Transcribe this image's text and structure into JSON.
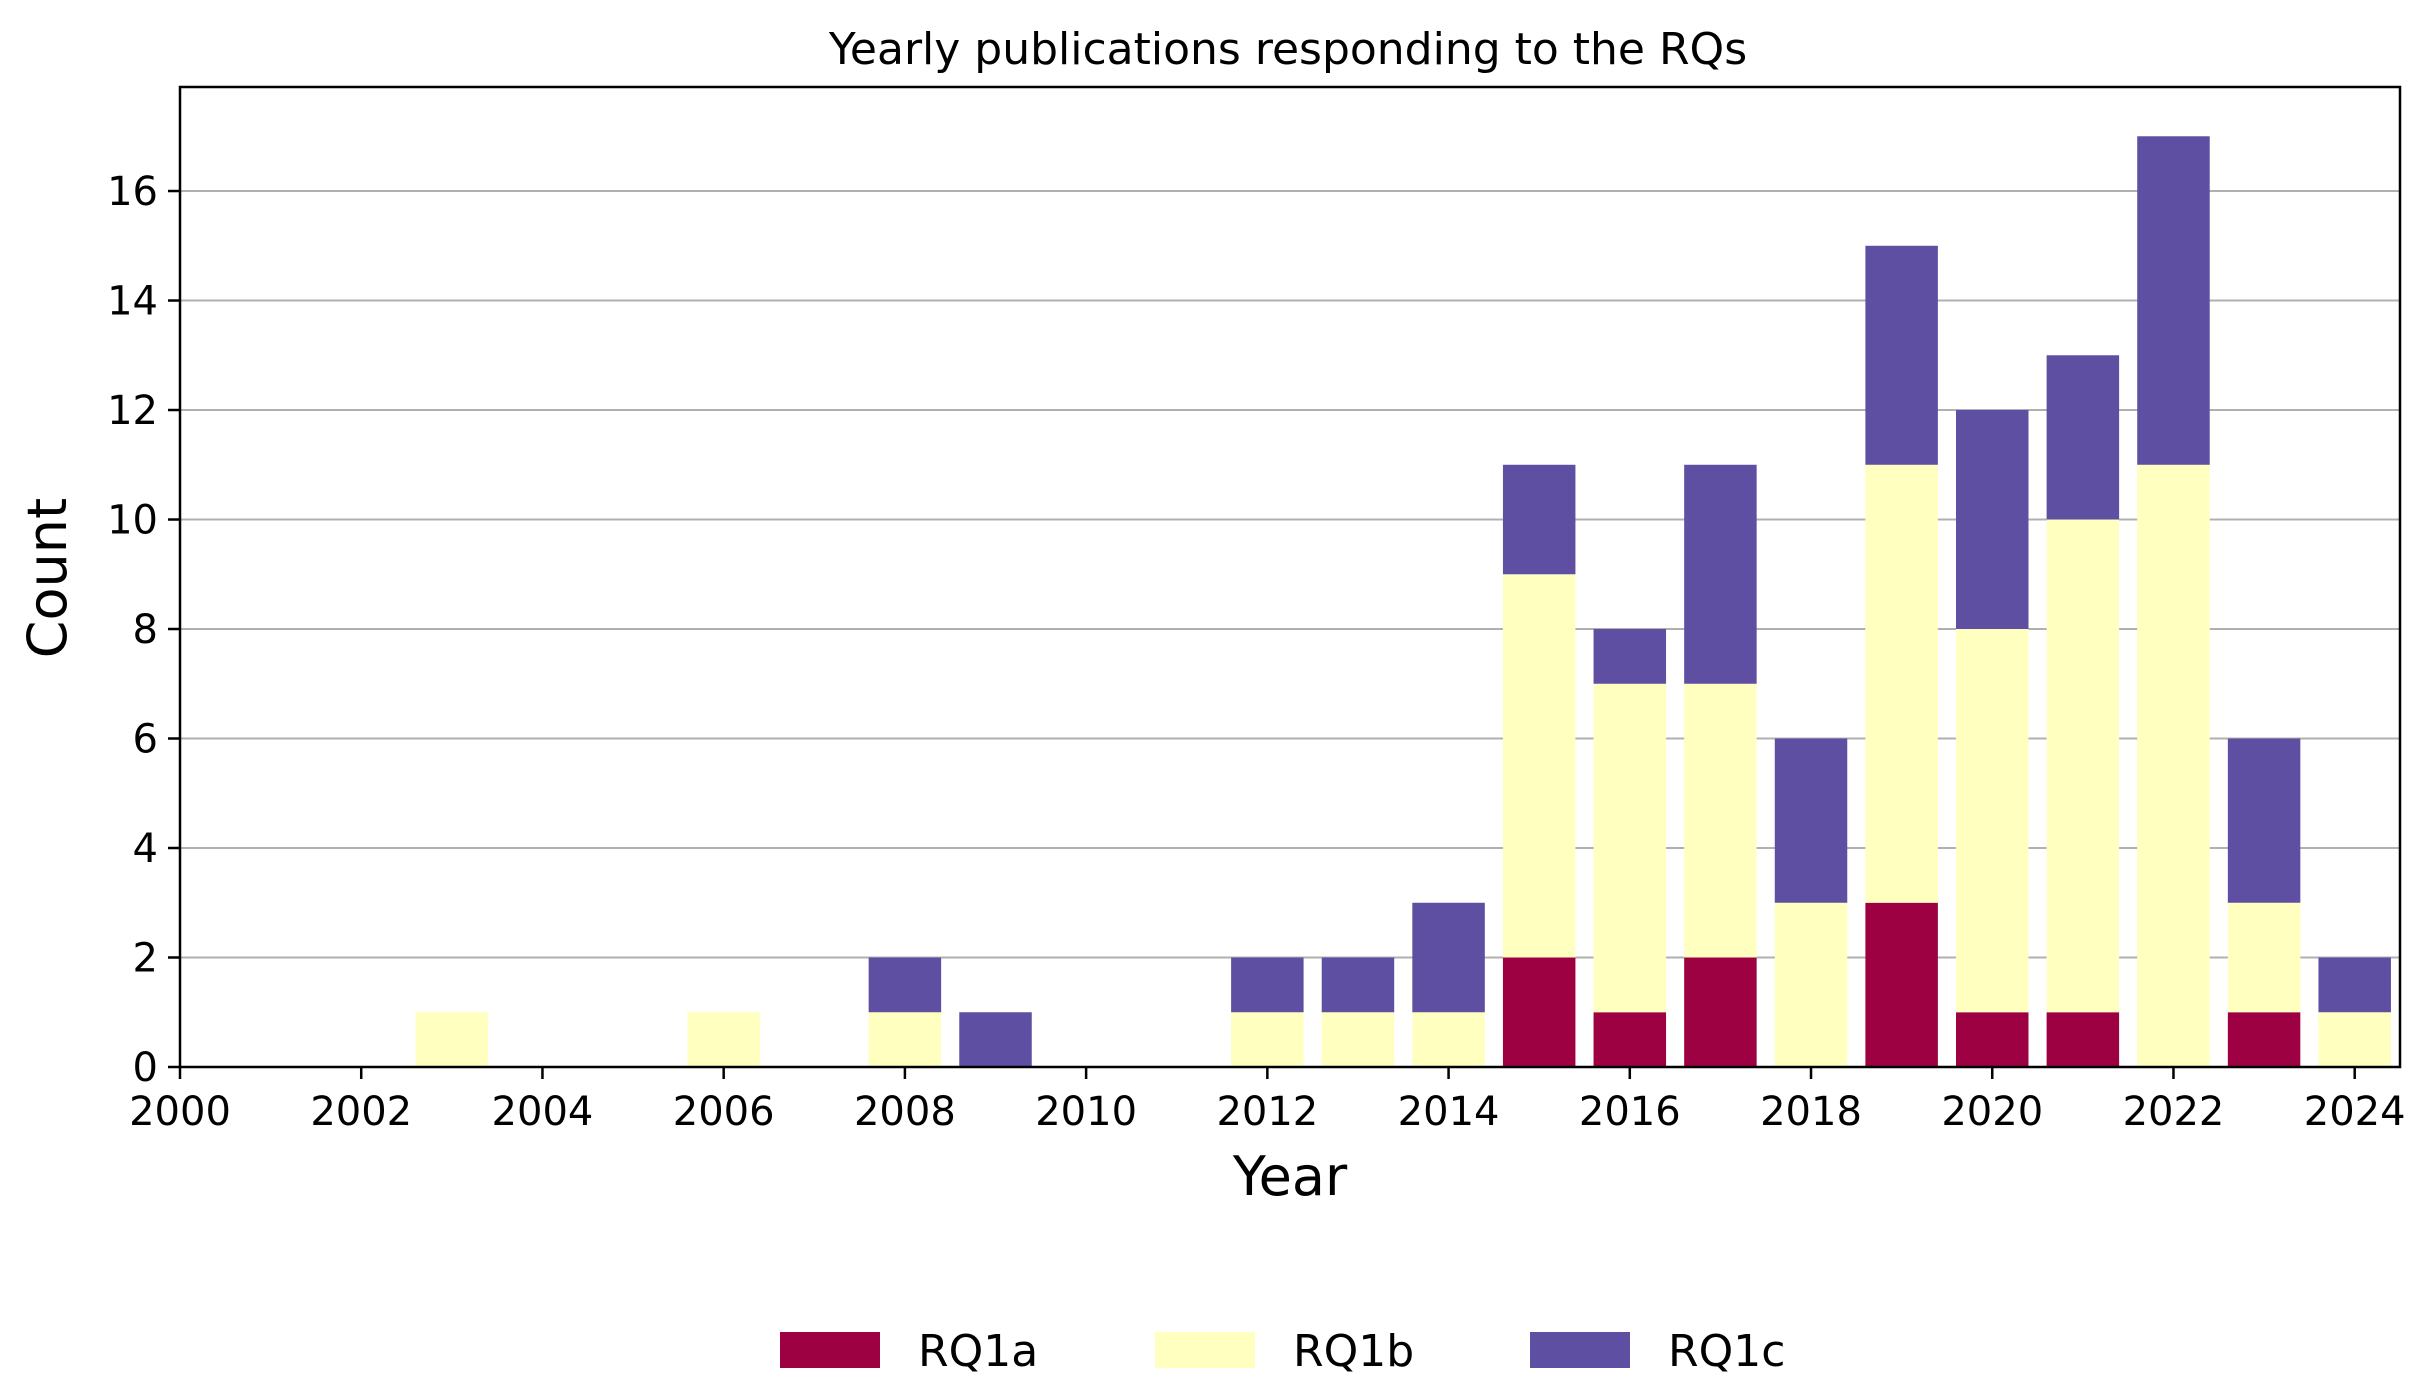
{
  "chart_data": {
    "type": "bar",
    "stacked": true,
    "title": "Yearly publications responding to the RQs",
    "xlabel": "Year",
    "ylabel": "Count",
    "xlim": [
      2000,
      2024.5
    ],
    "ylim": [
      0,
      17.9
    ],
    "grid": "y",
    "legend_position": "bottom-center",
    "x_ticks": [
      2000,
      2002,
      2004,
      2006,
      2008,
      2010,
      2012,
      2014,
      2016,
      2018,
      2020,
      2022,
      2024
    ],
    "y_ticks": [
      0,
      2,
      4,
      6,
      8,
      10,
      12,
      14,
      16
    ],
    "categories": [
      2003,
      2006,
      2008,
      2009,
      2012,
      2013,
      2014,
      2015,
      2016,
      2017,
      2018,
      2019,
      2020,
      2021,
      2022,
      2023,
      2024
    ],
    "series": [
      {
        "name": "RQ1a",
        "color": "#9e0142",
        "values": [
          0,
          0,
          0,
          0,
          0,
          0,
          0,
          2,
          1,
          2,
          0,
          3,
          1,
          1,
          0,
          1,
          0
        ]
      },
      {
        "name": "RQ1b",
        "color": "#ffffbf",
        "values": [
          1,
          1,
          1,
          0,
          1,
          1,
          1,
          7,
          6,
          5,
          3,
          8,
          7,
          9,
          11,
          2,
          1
        ]
      },
      {
        "name": "RQ1c",
        "color": "#5e4fa2",
        "values": [
          0,
          0,
          1,
          1,
          1,
          1,
          2,
          2,
          1,
          4,
          3,
          4,
          4,
          3,
          6,
          3,
          1
        ]
      }
    ]
  }
}
